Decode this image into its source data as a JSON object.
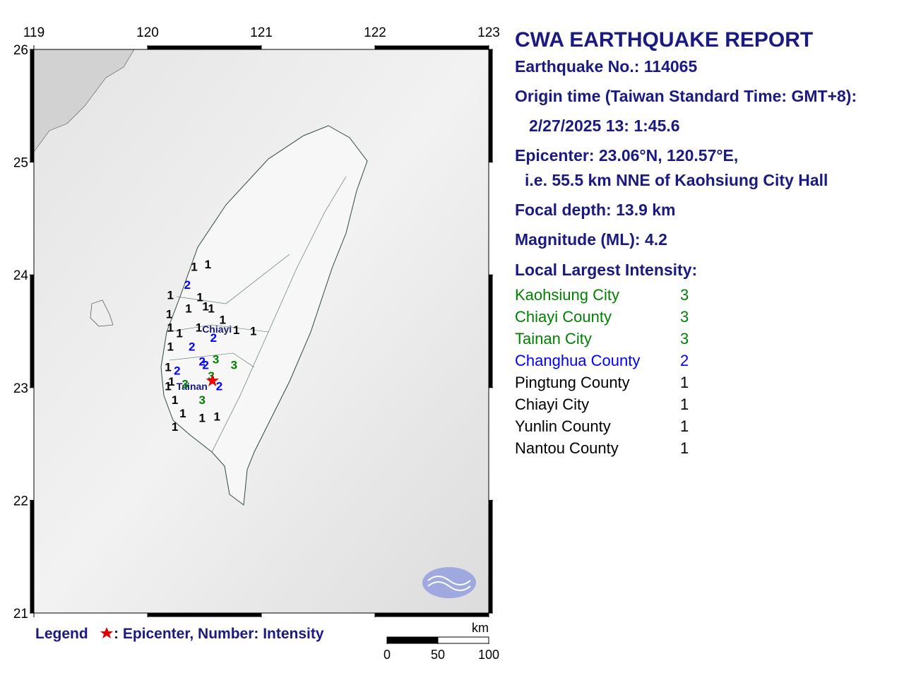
{
  "report": {
    "title": "CWA EARTHQUAKE REPORT",
    "lines": [
      "Earthquake No.: 114065",
      "Origin time (Taiwan Standard Time: GMT+8):",
      "2/27/2025 13: 1:45.6",
      "Epicenter: 23.06°N, 120.57°E,",
      "i.e. 55.5 km NNE of Kaohsiung City Hall",
      "Focal depth: 13.9 km",
      "Magnitude (ML): 4.2",
      "Local Largest Intensity:"
    ],
    "intensities": [
      {
        "name": "Kaohsiung City",
        "value": 3
      },
      {
        "name": "Chiayi County",
        "value": 3
      },
      {
        "name": "Tainan City",
        "value": 3
      },
      {
        "name": "Changhua County",
        "value": 2
      },
      {
        "name": "Pingtung County",
        "value": 1
      },
      {
        "name": "Chiayi City",
        "value": 1
      },
      {
        "name": "Yunlin County",
        "value": 1
      },
      {
        "name": "Nantou County",
        "value": 1
      }
    ]
  },
  "map": {
    "xlim": [
      119,
      123
    ],
    "ylim": [
      21,
      26
    ],
    "xticks": [
      119,
      120,
      121,
      122,
      123
    ],
    "yticks": [
      21,
      22,
      23,
      24,
      25,
      26
    ],
    "intensity_colors": {
      "1": "#000000",
      "2": "#0000ff",
      "3": "#008000"
    },
    "epicenter": {
      "lat": 23.06,
      "lon": 120.57,
      "color": "#ff0000"
    },
    "place_labels": [
      {
        "text": "Chiayi",
        "lat": 23.52,
        "lon": 120.61
      },
      {
        "text": "Tainan",
        "lat": 23.01,
        "lon": 120.39
      }
    ],
    "stations": [
      {
        "lat": 24.08,
        "lon": 120.41,
        "intensity": 1
      },
      {
        "lat": 24.1,
        "lon": 120.53,
        "intensity": 1
      },
      {
        "lat": 23.83,
        "lon": 120.2,
        "intensity": 1
      },
      {
        "lat": 23.81,
        "lon": 120.46,
        "intensity": 1
      },
      {
        "lat": 23.66,
        "lon": 120.19,
        "intensity": 1
      },
      {
        "lat": 23.71,
        "lon": 120.36,
        "intensity": 1
      },
      {
        "lat": 23.73,
        "lon": 120.51,
        "intensity": 1
      },
      {
        "lat": 23.71,
        "lon": 120.56,
        "intensity": 1
      },
      {
        "lat": 23.61,
        "lon": 120.66,
        "intensity": 1
      },
      {
        "lat": 23.54,
        "lon": 120.2,
        "intensity": 1
      },
      {
        "lat": 23.49,
        "lon": 120.28,
        "intensity": 1
      },
      {
        "lat": 23.54,
        "lon": 120.45,
        "intensity": 1
      },
      {
        "lat": 23.51,
        "lon": 120.93,
        "intensity": 1
      },
      {
        "lat": 23.52,
        "lon": 120.78,
        "intensity": 1
      },
      {
        "lat": 23.37,
        "lon": 120.2,
        "intensity": 1
      },
      {
        "lat": 23.19,
        "lon": 120.18,
        "intensity": 1
      },
      {
        "lat": 23.06,
        "lon": 120.21,
        "intensity": 1
      },
      {
        "lat": 23.02,
        "lon": 120.18,
        "intensity": 1
      },
      {
        "lat": 22.9,
        "lon": 120.24,
        "intensity": 1
      },
      {
        "lat": 22.78,
        "lon": 120.31,
        "intensity": 1
      },
      {
        "lat": 22.74,
        "lon": 120.48,
        "intensity": 1
      },
      {
        "lat": 22.75,
        "lon": 120.61,
        "intensity": 1
      },
      {
        "lat": 22.66,
        "lon": 120.24,
        "intensity": 1
      },
      {
        "lat": 23.92,
        "lon": 120.35,
        "intensity": 2
      },
      {
        "lat": 23.37,
        "lon": 120.39,
        "intensity": 2
      },
      {
        "lat": 23.45,
        "lon": 120.58,
        "intensity": 2
      },
      {
        "lat": 23.24,
        "lon": 120.48,
        "intensity": 2
      },
      {
        "lat": 23.21,
        "lon": 120.51,
        "intensity": 2
      },
      {
        "lat": 23.16,
        "lon": 120.26,
        "intensity": 2
      },
      {
        "lat": 23.02,
        "lon": 120.63,
        "intensity": 2
      },
      {
        "lat": 23.26,
        "lon": 120.6,
        "intensity": 3
      },
      {
        "lat": 23.21,
        "lon": 120.76,
        "intensity": 3
      },
      {
        "lat": 23.11,
        "lon": 120.56,
        "intensity": 3
      },
      {
        "lat": 23.04,
        "lon": 120.33,
        "intensity": 3
      },
      {
        "lat": 22.9,
        "lon": 120.48,
        "intensity": 3
      }
    ],
    "legend": {
      "label": "Legend",
      "text": ": Epicenter, Number: Intensity"
    },
    "scale_bar": {
      "unit": "km",
      "ticks": [
        0,
        50,
        100
      ]
    }
  }
}
